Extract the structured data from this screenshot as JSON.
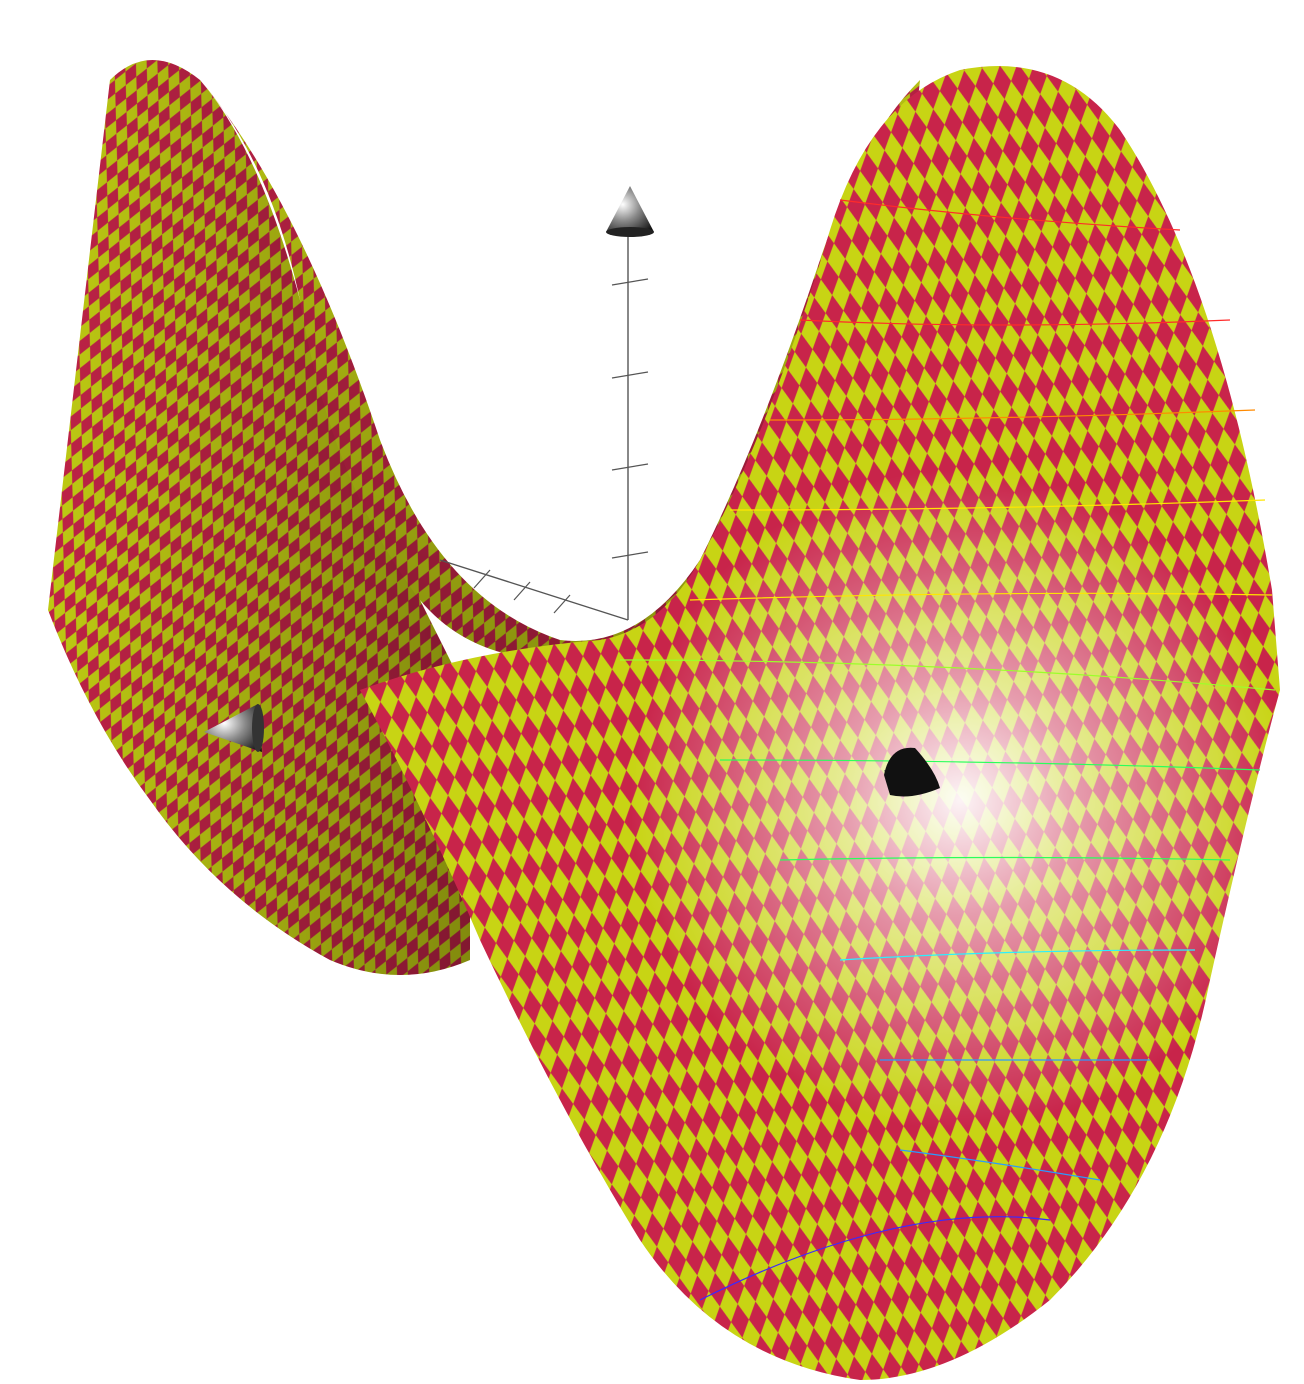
{
  "scene": {
    "surface": "hyperbolic-paraboloid",
    "pattern": "diamond-checkerboard",
    "colors": {
      "background": "#ffffff",
      "check_a": "#c8244a",
      "check_b": "#c8d414",
      "axis": "#555555",
      "arrowhead": "#3a3a3a",
      "highlight": "#ffffff"
    },
    "contour_colors": [
      "#ff2a2a",
      "#ff8a00",
      "#ffe600",
      "#9bff2a",
      "#2aff5c",
      "#2af0ff",
      "#2a9bff",
      "#3a2aff"
    ],
    "axes": [
      {
        "name": "z-axis",
        "icon": "cone-arrow-up"
      },
      {
        "name": "x-axis",
        "icon": "cone-arrow-left"
      },
      {
        "name": "y-axis",
        "icon": "cone-arrow-right"
      }
    ]
  }
}
